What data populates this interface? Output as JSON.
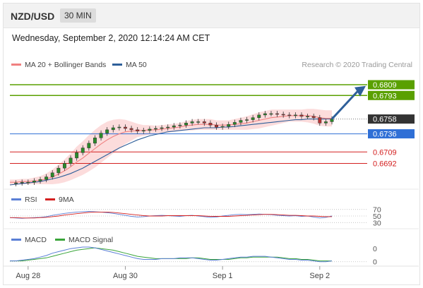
{
  "header": {
    "pair": "NZD/USD",
    "timeframe": "30 MIN"
  },
  "datetime": "Wednesday, September 2, 2020 12:14:24 AM CET",
  "legend_main": [
    {
      "label": "MA 20 + Bollinger Bands",
      "color": "#f08080"
    },
    {
      "label": "MA 50",
      "color": "#2e5f9a"
    }
  ],
  "credit": "Research © 2020 Trading Central",
  "legend_rsi": [
    {
      "label": "RSI",
      "color": "#5b7fd6"
    },
    {
      "label": "9MA",
      "color": "#d42020"
    }
  ],
  "legend_macd": [
    {
      "label": "MACD",
      "color": "#5b7fd6"
    },
    {
      "label": "MACD Signal",
      "color": "#3aa53a"
    }
  ],
  "chart_data": {
    "type": "line",
    "x_tick_labels": [
      "Aug 28",
      "Aug 30",
      "Sep 1",
      "Sep 2"
    ],
    "price_ylim": [
      0.666,
      0.683
    ],
    "price_series": [
      0.6662,
      0.6663,
      0.6664,
      0.6664,
      0.6666,
      0.6668,
      0.6672,
      0.6678,
      0.6685,
      0.6692,
      0.67,
      0.6708,
      0.6715,
      0.6722,
      0.673,
      0.6737,
      0.6742,
      0.6745,
      0.6746,
      0.6744,
      0.6742,
      0.674,
      0.6741,
      0.6743,
      0.6744,
      0.6745,
      0.6746,
      0.6748,
      0.6749,
      0.6752,
      0.6754,
      0.6754,
      0.6752,
      0.6749,
      0.6746,
      0.6747,
      0.675,
      0.6753,
      0.6756,
      0.6757,
      0.676,
      0.6764,
      0.6766,
      0.6766,
      0.6765,
      0.6764,
      0.6763,
      0.6764,
      0.6762,
      0.6762,
      0.676,
      0.6752,
      0.6754,
      0.6758
    ],
    "ma20_series": [
      0.6664,
      0.6664,
      0.6665,
      0.6665,
      0.6666,
      0.6667,
      0.6669,
      0.6672,
      0.6676,
      0.6681,
      0.6687,
      0.6694,
      0.67,
      0.6707,
      0.6714,
      0.6721,
      0.6727,
      0.6732,
      0.6736,
      0.6739,
      0.674,
      0.6741,
      0.6741,
      0.6742,
      0.6742,
      0.6743,
      0.6744,
      0.6745,
      0.6746,
      0.6748,
      0.6749,
      0.675,
      0.675,
      0.675,
      0.6749,
      0.6749,
      0.6749,
      0.675,
      0.6751,
      0.6752,
      0.6754,
      0.6756,
      0.6758,
      0.676,
      0.6761,
      0.6762,
      0.6763,
      0.6763,
      0.6763,
      0.6763,
      0.6762,
      0.676,
      0.6759,
      0.6759
    ],
    "ma50_series": [
      0.666,
      0.6661,
      0.6662,
      0.6663,
      0.6664,
      0.6665,
      0.6667,
      0.6669,
      0.6671,
      0.6674,
      0.6677,
      0.6681,
      0.6685,
      0.669,
      0.6695,
      0.67,
      0.6705,
      0.671,
      0.6715,
      0.6719,
      0.6723,
      0.6727,
      0.673,
      0.6733,
      0.6735,
      0.6737,
      0.6739,
      0.674,
      0.6741,
      0.6742,
      0.6743,
      0.6744,
      0.6745,
      0.6745,
      0.6745,
      0.6746,
      0.6746,
      0.6747,
      0.6748,
      0.6749,
      0.675,
      0.6751,
      0.6752,
      0.6753,
      0.6754,
      0.6755,
      0.6756,
      0.6757,
      0.6757,
      0.6758,
      0.6758,
      0.6758,
      0.6758,
      0.6758
    ],
    "bollinger_halfwidth": [
      0.0004,
      0.0004,
      0.0004,
      0.0004,
      0.0005,
      0.0006,
      0.0008,
      0.0011,
      0.0014,
      0.0017,
      0.002,
      0.0023,
      0.0025,
      0.0027,
      0.0028,
      0.0028,
      0.0027,
      0.0025,
      0.0022,
      0.0018,
      0.0014,
      0.001,
      0.0008,
      0.0007,
      0.0006,
      0.0006,
      0.0006,
      0.0006,
      0.0006,
      0.0007,
      0.0008,
      0.0008,
      0.0008,
      0.0008,
      0.0007,
      0.0007,
      0.0007,
      0.0008,
      0.0009,
      0.001,
      0.0011,
      0.0012,
      0.0012,
      0.0012,
      0.0011,
      0.001,
      0.0009,
      0.0009,
      0.0009,
      0.001,
      0.0011,
      0.0012,
      0.0012,
      0.0012
    ],
    "levels": [
      {
        "value": 0.6809,
        "label": "0.6809",
        "kind": "resistance",
        "color": "#5aa000"
      },
      {
        "value": 0.6793,
        "label": "0.6793",
        "kind": "resistance",
        "color": "#5aa000"
      },
      {
        "value": 0.6758,
        "label": "0.6758",
        "kind": "last",
        "color": "#333333"
      },
      {
        "value": 0.6736,
        "label": "0.6736",
        "kind": "pivot",
        "color": "#2f6fd6"
      },
      {
        "value": 0.6709,
        "label": "0.6709",
        "kind": "support",
        "color": "#d42020"
      },
      {
        "value": 0.6692,
        "label": "0.6692",
        "kind": "support",
        "color": "#d42020"
      }
    ],
    "rsi": {
      "ylim": [
        20,
        80
      ],
      "tick_labels": [
        "70",
        "50",
        "30"
      ],
      "tick_values": [
        70,
        50,
        30
      ],
      "rsi_series": [
        45,
        44,
        43,
        44,
        45,
        46,
        48,
        52,
        55,
        58,
        60,
        62,
        63,
        64,
        63,
        62,
        60,
        58,
        55,
        52,
        49,
        47,
        48,
        50,
        51,
        52,
        51,
        50,
        49,
        51,
        52,
        50,
        48,
        46,
        47,
        50,
        52,
        54,
        55,
        54,
        55,
        56,
        55,
        54,
        52,
        51,
        50,
        51,
        49,
        50,
        47,
        44,
        46,
        50
      ],
      "ma9_series": [
        45,
        45,
        44,
        44,
        44,
        45,
        46,
        48,
        50,
        53,
        55,
        57,
        59,
        61,
        62,
        62,
        62,
        61,
        59,
        57,
        55,
        53,
        51,
        50,
        50,
        50,
        51,
        51,
        51,
        51,
        51,
        51,
        50,
        49,
        49,
        49,
        49,
        50,
        51,
        52,
        53,
        54,
        55,
        55,
        54,
        53,
        52,
        52,
        51,
        50,
        50,
        49,
        48,
        48
      ]
    },
    "macd": {
      "tick_labels": [
        "0",
        "0"
      ],
      "macd_series": [
        0.0001,
        0.0001,
        0.0002,
        0.0003,
        0.0004,
        0.0006,
        0.0008,
        0.0011,
        0.0013,
        0.0015,
        0.0017,
        0.0018,
        0.0019,
        0.0019,
        0.0018,
        0.0016,
        0.0014,
        0.0012,
        0.001,
        0.0008,
        0.0006,
        0.0004,
        0.0003,
        0.0003,
        0.0003,
        0.0004,
        0.0004,
        0.0004,
        0.0005,
        0.0005,
        0.0005,
        0.0004,
        0.0003,
        0.0002,
        0.0002,
        0.0003,
        0.0004,
        0.0005,
        0.0006,
        0.0006,
        0.0007,
        0.0007,
        0.0007,
        0.0006,
        0.0005,
        0.0004,
        0.0003,
        0.0003,
        0.0002,
        0.0002,
        0.0001,
        0.0,
        0.0,
        0.0001
      ],
      "signal_series": [
        0.0001,
        0.0001,
        0.0001,
        0.0002,
        0.0003,
        0.0004,
        0.0005,
        0.0007,
        0.0009,
        0.0011,
        0.0013,
        0.0015,
        0.0016,
        0.0017,
        0.0018,
        0.0017,
        0.0016,
        0.0015,
        0.0013,
        0.0011,
        0.0009,
        0.0007,
        0.0006,
        0.0005,
        0.0004,
        0.0004,
        0.0004,
        0.0004,
        0.0004,
        0.0004,
        0.0005,
        0.0005,
        0.0004,
        0.0003,
        0.0003,
        0.0003,
        0.0003,
        0.0004,
        0.0005,
        0.0005,
        0.0006,
        0.0006,
        0.0006,
        0.0006,
        0.0006,
        0.0005,
        0.0004,
        0.0004,
        0.0003,
        0.0003,
        0.0002,
        0.0001,
        0.0001,
        0.0001
      ]
    }
  }
}
